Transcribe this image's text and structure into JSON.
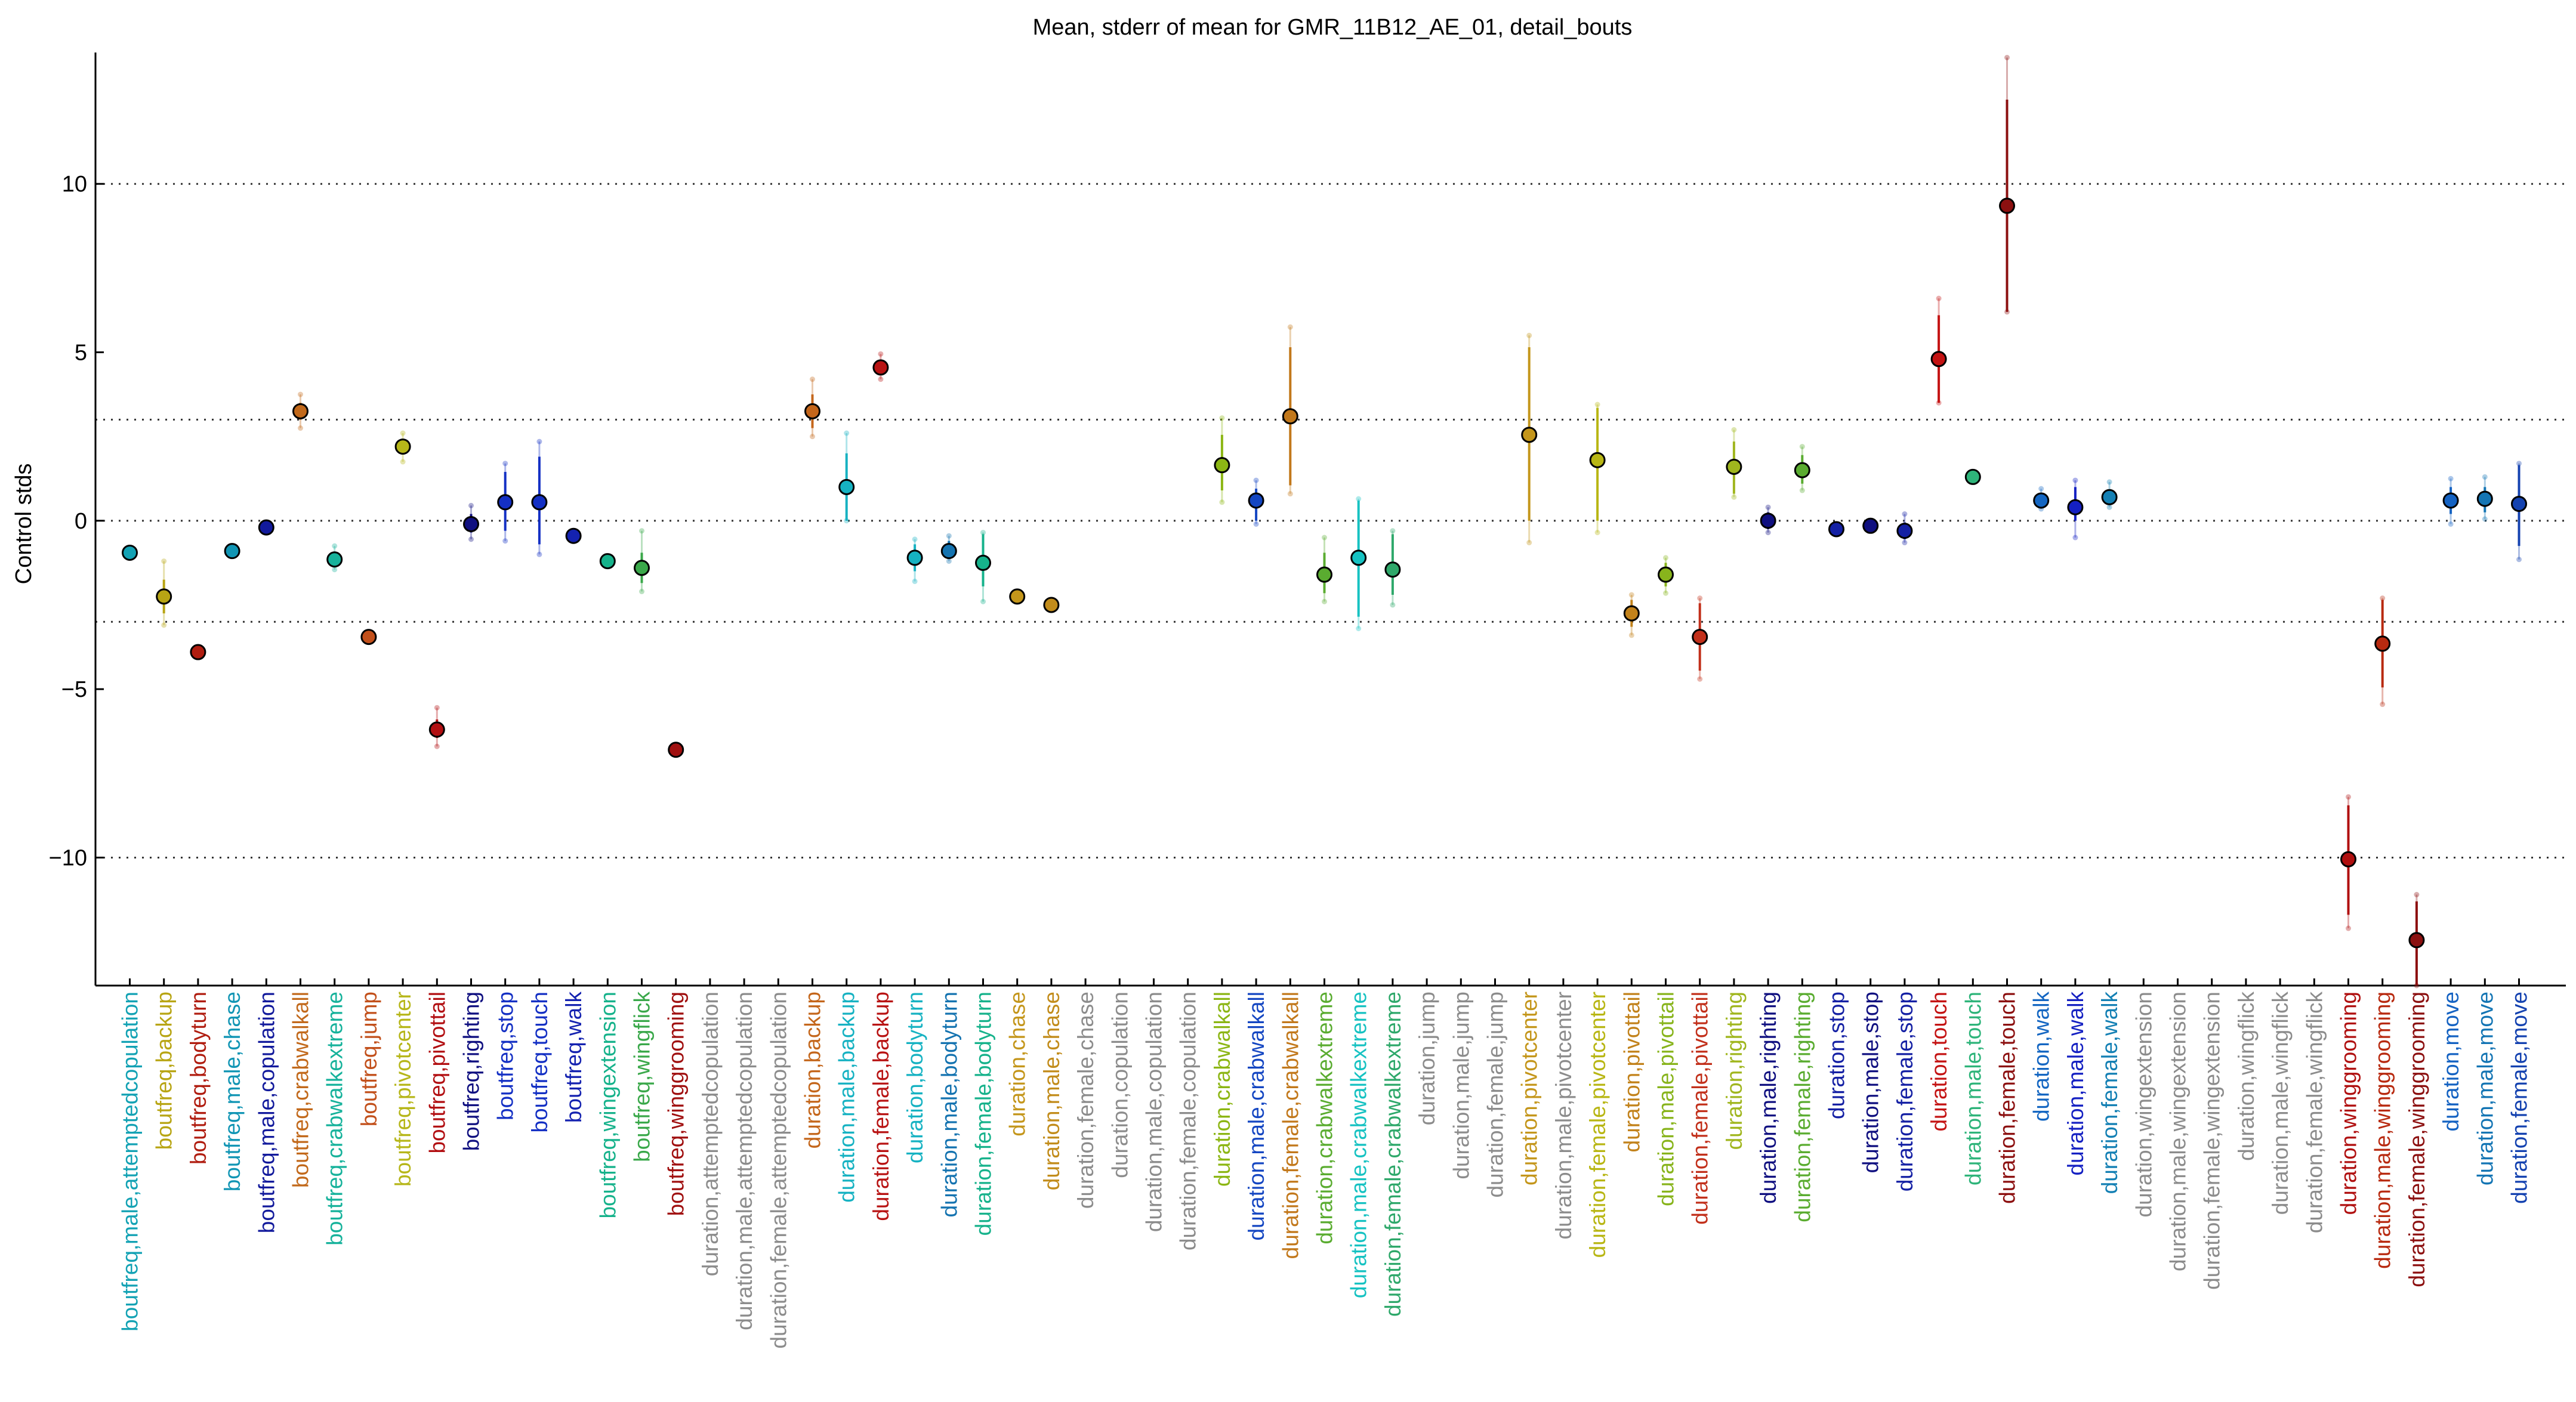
{
  "chart_data": {
    "type": "scatter",
    "title": "Mean, stderr of mean for GMR_11B12_AE_01, detail_bouts",
    "xlabel": "",
    "ylabel": "Control stds",
    "ylim": [
      -13.8,
      13.9
    ],
    "yticks": [
      -10,
      -5,
      0,
      5,
      10
    ],
    "hlines_dotted": [
      -10,
      -3,
      0,
      3,
      10
    ],
    "points": [
      {
        "label": "boutfreq,male,attemptedcopulation",
        "color": "#13a2b4",
        "mean": -0.95,
        "se_lo": -0.95,
        "se_hi": -0.95,
        "sd_lo": -0.95,
        "sd_hi": -0.95
      },
      {
        "label": "boutfreq,backup",
        "color": "#b8a514",
        "mean": -2.25,
        "se_lo": -2.75,
        "se_hi": -1.75,
        "sd_lo": -3.1,
        "sd_hi": -1.2
      },
      {
        "label": "boutfreq,bodyturn",
        "color": "#b01d10",
        "mean": -3.9,
        "se_lo": -3.9,
        "se_hi": -3.9,
        "sd_lo": -3.9,
        "sd_hi": -3.9
      },
      {
        "label": "boutfreq,male,chase",
        "color": "#1195b4",
        "mean": -0.9,
        "se_lo": -0.9,
        "se_hi": -0.9,
        "sd_lo": -0.9,
        "sd_hi": -0.9
      },
      {
        "label": "boutfreq,male,copulation",
        "color": "#121a9c",
        "mean": -0.2,
        "se_lo": -0.2,
        "se_hi": -0.2,
        "sd_lo": -0.2,
        "sd_hi": -0.2
      },
      {
        "label": "boutfreq,crabwalkall",
        "color": "#c2691b",
        "mean": 3.25,
        "se_lo": 3.0,
        "se_hi": 3.5,
        "sd_lo": 2.75,
        "sd_hi": 3.75
      },
      {
        "label": "boutfreq,crabwalkextreme",
        "color": "#16b29b",
        "mean": -1.15,
        "se_lo": -1.35,
        "se_hi": -0.95,
        "sd_lo": -1.45,
        "sd_hi": -0.75
      },
      {
        "label": "boutfreq,jump",
        "color": "#c2501b",
        "mean": -3.45,
        "se_lo": -3.45,
        "se_hi": -3.45,
        "sd_lo": -3.45,
        "sd_hi": -3.45
      },
      {
        "label": "boutfreq,pivotcenter",
        "color": "#b6b619",
        "mean": 2.2,
        "se_lo": 2.0,
        "se_hi": 2.4,
        "sd_lo": 1.75,
        "sd_hi": 2.6
      },
      {
        "label": "boutfreq,pivottail",
        "color": "#b20f12",
        "mean": -6.2,
        "se_lo": -6.45,
        "se_hi": -5.9,
        "sd_lo": -6.7,
        "sd_hi": -5.55
      },
      {
        "label": "boutfreq,righting",
        "color": "#101080",
        "mean": -0.1,
        "se_lo": -0.35,
        "se_hi": 0.2,
        "sd_lo": -0.55,
        "sd_hi": 0.45
      },
      {
        "label": "boutfreq,stop",
        "color": "#1430c4",
        "mean": 0.55,
        "se_lo": -0.3,
        "se_hi": 1.45,
        "sd_lo": -0.6,
        "sd_hi": 1.7
      },
      {
        "label": "boutfreq,touch",
        "color": "#1430c4",
        "mean": 0.55,
        "se_lo": -0.7,
        "se_hi": 1.9,
        "sd_lo": -1.0,
        "sd_hi": 2.35
      },
      {
        "label": "boutfreq,walk",
        "color": "#1422b0",
        "mean": -0.45,
        "se_lo": -0.45,
        "se_hi": -0.45,
        "sd_lo": -0.45,
        "sd_hi": -0.45
      },
      {
        "label": "boutfreq,wingextension",
        "color": "#16b28b",
        "mean": -1.2,
        "se_lo": -1.2,
        "se_hi": -1.2,
        "sd_lo": -1.2,
        "sd_hi": -1.2
      },
      {
        "label": "boutfreq,wingflick",
        "color": "#3aa84a",
        "mean": -1.4,
        "se_lo": -1.85,
        "se_hi": -0.95,
        "sd_lo": -2.1,
        "sd_hi": -0.3
      },
      {
        "label": "boutfreq,winggrooming",
        "color": "#a01010",
        "mean": -6.8,
        "se_lo": -6.8,
        "se_hi": -6.8,
        "sd_lo": -6.8,
        "sd_hi": -6.8
      },
      {
        "label": "duration,attemptedcopulation",
        "color": "#8c8c8c"
      },
      {
        "label": "duration,male,attemptedcopulation",
        "color": "#8c8c8c"
      },
      {
        "label": "duration,female,attemptedcopulation",
        "color": "#8c8c8c"
      },
      {
        "label": "duration,backup",
        "color": "#c4661b",
        "mean": 3.25,
        "se_lo": 2.75,
        "se_hi": 3.75,
        "sd_lo": 2.5,
        "sd_hi": 4.2
      },
      {
        "label": "duration,male,backup",
        "color": "#16b2c2",
        "mean": 1.0,
        "se_lo": 0.0,
        "se_hi": 2.0,
        "sd_lo": 0.0,
        "sd_hi": 2.6
      },
      {
        "label": "duration,female,backup",
        "color": "#b81313",
        "mean": 4.55,
        "se_lo": 4.4,
        "se_hi": 4.75,
        "sd_lo": 4.2,
        "sd_hi": 4.95
      },
      {
        "label": "duration,bodyturn",
        "color": "#16b2c2",
        "mean": -1.1,
        "se_lo": -1.5,
        "se_hi": -0.7,
        "sd_lo": -1.8,
        "sd_hi": -0.55
      },
      {
        "label": "duration,male,bodyturn",
        "color": "#1473b0",
        "mean": -0.9,
        "se_lo": -1.1,
        "se_hi": -0.6,
        "sd_lo": -1.2,
        "sd_hi": -0.45
      },
      {
        "label": "duration,female,bodyturn",
        "color": "#16b28b",
        "mean": -1.25,
        "se_lo": -1.95,
        "se_hi": -0.4,
        "sd_lo": -2.4,
        "sd_hi": -0.35
      },
      {
        "label": "duration,chase",
        "color": "#c4961b",
        "mean": -2.25,
        "se_lo": -2.25,
        "se_hi": -2.25,
        "sd_lo": -2.25,
        "sd_hi": -2.25
      },
      {
        "label": "duration,male,chase",
        "color": "#c28c1b",
        "mean": -2.5,
        "se_lo": -2.5,
        "se_hi": -2.5,
        "sd_lo": -2.5,
        "sd_hi": -2.5
      },
      {
        "label": "duration,female,chase",
        "color": "#8c8c8c"
      },
      {
        "label": "duration,copulation",
        "color": "#8c8c8c"
      },
      {
        "label": "duration,male,copulation",
        "color": "#8c8c8c"
      },
      {
        "label": "duration,female,copulation",
        "color": "#8c8c8c"
      },
      {
        "label": "duration,crabwalkall",
        "color": "#8cb614",
        "mean": 1.65,
        "se_lo": 0.9,
        "se_hi": 2.55,
        "sd_lo": 0.55,
        "sd_hi": 3.05
      },
      {
        "label": "duration,male,crabwalkall",
        "color": "#1446c2",
        "mean": 0.6,
        "se_lo": 0.0,
        "se_hi": 0.95,
        "sd_lo": -0.1,
        "sd_hi": 1.2
      },
      {
        "label": "duration,female,crabwalkall",
        "color": "#c2781b",
        "mean": 3.1,
        "se_lo": 1.05,
        "se_hi": 5.15,
        "sd_lo": 0.8,
        "sd_hi": 5.75
      },
      {
        "label": "duration,crabwalkextreme",
        "color": "#5aac30",
        "mean": -1.6,
        "se_lo": -2.15,
        "se_hi": -0.95,
        "sd_lo": -2.4,
        "sd_hi": -0.5
      },
      {
        "label": "duration,male,crabwalkextreme",
        "color": "#16c2c2",
        "mean": -1.1,
        "se_lo": -2.85,
        "se_hi": 0.6,
        "sd_lo": -3.2,
        "sd_hi": 0.65
      },
      {
        "label": "duration,female,crabwalkextreme",
        "color": "#2ea86a",
        "mean": -1.45,
        "se_lo": -2.2,
        "se_hi": -0.4,
        "sd_lo": -2.5,
        "sd_hi": -0.3
      },
      {
        "label": "duration,jump",
        "color": "#8c8c8c"
      },
      {
        "label": "duration,male,jump",
        "color": "#8c8c8c"
      },
      {
        "label": "duration,female,jump",
        "color": "#8c8c8c"
      },
      {
        "label": "duration,pivotcenter",
        "color": "#c4961b",
        "mean": 2.55,
        "se_lo": 0.0,
        "se_hi": 5.15,
        "sd_lo": -0.65,
        "sd_hi": 5.5
      },
      {
        "label": "duration,male,pivotcenter",
        "color": "#8c8c8c"
      },
      {
        "label": "duration,female,pivotcenter",
        "color": "#b8b614",
        "mean": 1.8,
        "se_lo": 0.0,
        "se_hi": 3.35,
        "sd_lo": -0.35,
        "sd_hi": 3.45
      },
      {
        "label": "duration,pivottail",
        "color": "#c2821b",
        "mean": -2.75,
        "se_lo": -3.15,
        "se_hi": -2.35,
        "sd_lo": -3.4,
        "sd_hi": -2.2
      },
      {
        "label": "duration,male,pivottail",
        "color": "#88b41c",
        "mean": -1.6,
        "se_lo": -1.95,
        "se_hi": -1.25,
        "sd_lo": -2.15,
        "sd_hi": -1.1
      },
      {
        "label": "duration,female,pivottail",
        "color": "#c2301b",
        "mean": -3.45,
        "se_lo": -4.45,
        "se_hi": -2.45,
        "sd_lo": -4.7,
        "sd_hi": -2.3
      },
      {
        "label": "duration,righting",
        "color": "#a0b61e",
        "mean": 1.6,
        "se_lo": 0.8,
        "se_hi": 2.35,
        "sd_lo": 0.7,
        "sd_hi": 2.7
      },
      {
        "label": "duration,male,righting",
        "color": "#101080",
        "mean": 0.0,
        "se_lo": -0.25,
        "se_hi": 0.25,
        "sd_lo": -0.35,
        "sd_hi": 0.4
      },
      {
        "label": "duration,female,righting",
        "color": "#5aac30",
        "mean": 1.5,
        "se_lo": 1.1,
        "se_hi": 1.95,
        "sd_lo": 0.9,
        "sd_hi": 2.2
      },
      {
        "label": "duration,stop",
        "color": "#1420a4",
        "mean": -0.25,
        "se_lo": -0.25,
        "se_hi": -0.25,
        "sd_lo": -0.25,
        "sd_hi": -0.25
      },
      {
        "label": "duration,male,stop",
        "color": "#101080",
        "mean": -0.15,
        "se_lo": -0.15,
        "se_hi": -0.15,
        "sd_lo": -0.15,
        "sd_hi": -0.15
      },
      {
        "label": "duration,female,stop",
        "color": "#1420a4",
        "mean": -0.3,
        "se_lo": -0.55,
        "se_hi": -0.05,
        "sd_lo": -0.65,
        "sd_hi": 0.2
      },
      {
        "label": "duration,touch",
        "color": "#c41313",
        "mean": 4.8,
        "se_lo": 3.5,
        "se_hi": 6.1,
        "sd_lo": 3.5,
        "sd_hi": 6.6
      },
      {
        "label": "duration,male,touch",
        "color": "#2eb47a",
        "mean": 1.3,
        "se_lo": 1.3,
        "se_hi": 1.3,
        "sd_lo": 1.3,
        "sd_hi": 1.3
      },
      {
        "label": "duration,female,touch",
        "color": "#8c1010",
        "mean": 9.35,
        "se_lo": 6.2,
        "se_hi": 12.5,
        "sd_lo": 6.2,
        "sd_hi": 13.75
      },
      {
        "label": "duration,walk",
        "color": "#1466c2",
        "mean": 0.6,
        "se_lo": 0.45,
        "se_hi": 0.8,
        "sd_lo": 0.35,
        "sd_hi": 0.95
      },
      {
        "label": "duration,male,walk",
        "color": "#1420c2",
        "mean": 0.4,
        "se_lo": 0.0,
        "se_hi": 1.0,
        "sd_lo": -0.5,
        "sd_hi": 1.2
      },
      {
        "label": "duration,female,walk",
        "color": "#1480b4",
        "mean": 0.7,
        "se_lo": 0.5,
        "se_hi": 0.9,
        "sd_lo": 0.4,
        "sd_hi": 1.15
      },
      {
        "label": "duration,wingextension",
        "color": "#8c8c8c"
      },
      {
        "label": "duration,male,wingextension",
        "color": "#8c8c8c"
      },
      {
        "label": "duration,female,wingextension",
        "color": "#8c8c8c"
      },
      {
        "label": "duration,wingflick",
        "color": "#8c8c8c"
      },
      {
        "label": "duration,male,wingflick",
        "color": "#8c8c8c"
      },
      {
        "label": "duration,female,wingflick",
        "color": "#8c8c8c"
      },
      {
        "label": "duration,winggrooming",
        "color": "#b01010",
        "mean": -10.05,
        "se_lo": -11.7,
        "se_hi": -8.45,
        "sd_lo": -12.1,
        "sd_hi": -8.2
      },
      {
        "label": "duration,male,winggrooming",
        "color": "#b82a10",
        "mean": -3.65,
        "se_lo": -4.95,
        "se_hi": -2.35,
        "sd_lo": -5.45,
        "sd_hi": -2.3
      },
      {
        "label": "duration,female,winggrooming",
        "color": "#8c1010",
        "mean": -12.45,
        "se_lo": -13.8,
        "se_hi": -11.3,
        "sd_lo": -13.8,
        "sd_hi": -11.1
      },
      {
        "label": "duration,move",
        "color": "#1462c2",
        "mean": 0.6,
        "se_lo": 0.2,
        "se_hi": 1.0,
        "sd_lo": -0.1,
        "sd_hi": 1.25
      },
      {
        "label": "duration,male,move",
        "color": "#1475b4",
        "mean": 0.65,
        "se_lo": 0.25,
        "se_hi": 1.0,
        "sd_lo": 0.05,
        "sd_hi": 1.3
      },
      {
        "label": "duration,female,move",
        "color": "#1442b0",
        "mean": 0.5,
        "se_lo": -0.75,
        "se_hi": 1.65,
        "sd_lo": -1.15,
        "sd_hi": 1.7
      }
    ]
  }
}
